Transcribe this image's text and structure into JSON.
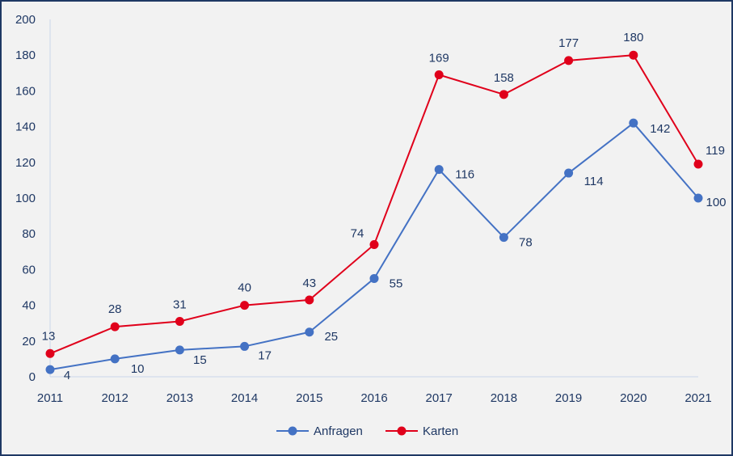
{
  "chart_data": {
    "type": "line",
    "x": [
      "2011",
      "2012",
      "2013",
      "2014",
      "2015",
      "2016",
      "2017",
      "2018",
      "2019",
      "2020",
      "2021"
    ],
    "series": [
      {
        "name": "Anfragen",
        "color": "#4472c4",
        "values": [
          4,
          10,
          15,
          17,
          25,
          55,
          116,
          78,
          114,
          142,
          100
        ]
      },
      {
        "name": "Karten",
        "color": "#e0001b",
        "values": [
          13,
          28,
          31,
          40,
          43,
          74,
          169,
          158,
          177,
          180,
          119
        ]
      }
    ],
    "yticks": [
      "0",
      "20",
      "40",
      "60",
      "80",
      "100",
      "120",
      "140",
      "160",
      "180",
      "200"
    ],
    "ylim": [
      0,
      200
    ],
    "legend_position": "bottom",
    "grid": false
  }
}
